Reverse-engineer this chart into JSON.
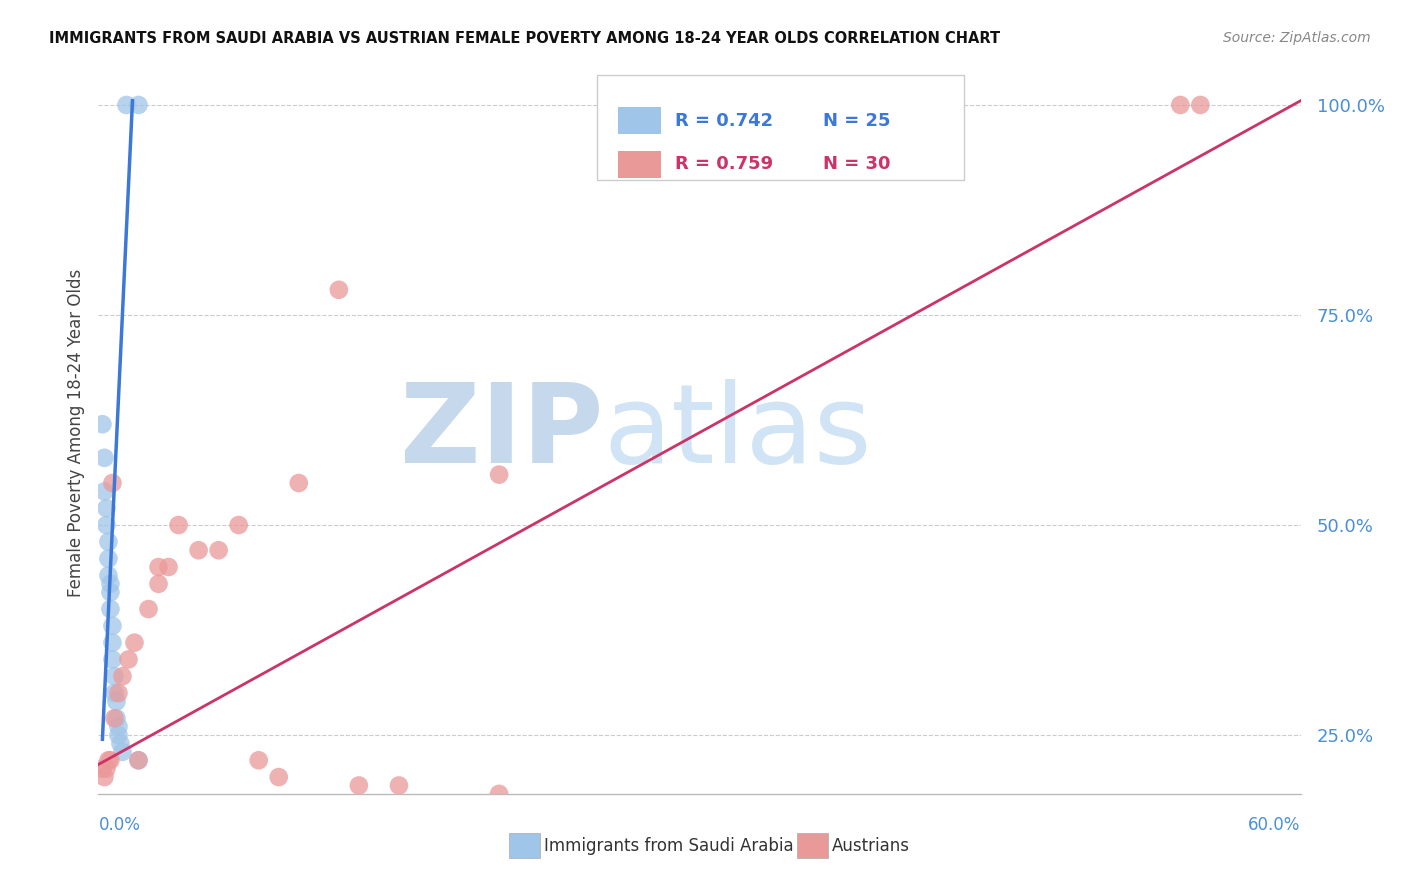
{
  "title": "IMMIGRANTS FROM SAUDI ARABIA VS AUSTRIAN FEMALE POVERTY AMONG 18-24 YEAR OLDS CORRELATION CHART",
  "source": "Source: ZipAtlas.com",
  "ylabel": "Female Poverty Among 18-24 Year Olds",
  "xmin": 0.0,
  "xmax": 0.6,
  "ymin": 0.18,
  "ymax": 1.04,
  "blue_color": "#9fc5e8",
  "pink_color": "#ea9999",
  "blue_line_color": "#3c78d8",
  "pink_line_color": "#cc3366",
  "blue_x": [
    0.002,
    0.003,
    0.003,
    0.004,
    0.004,
    0.005,
    0.005,
    0.005,
    0.006,
    0.006,
    0.006,
    0.007,
    0.007,
    0.007,
    0.008,
    0.008,
    0.009,
    0.009,
    0.01,
    0.01,
    0.011,
    0.012,
    0.014,
    0.02,
    0.02
  ],
  "blue_y": [
    0.62,
    0.58,
    0.54,
    0.52,
    0.5,
    0.48,
    0.46,
    0.44,
    0.43,
    0.42,
    0.4,
    0.38,
    0.36,
    0.34,
    0.32,
    0.3,
    0.29,
    0.27,
    0.26,
    0.25,
    0.24,
    0.23,
    1.0,
    1.0,
    0.22
  ],
  "pink_x": [
    0.002,
    0.003,
    0.004,
    0.005,
    0.006,
    0.007,
    0.008,
    0.01,
    0.012,
    0.015,
    0.018,
    0.02,
    0.025,
    0.03,
    0.03,
    0.035,
    0.04,
    0.05,
    0.06,
    0.07,
    0.08,
    0.09,
    0.1,
    0.12,
    0.13,
    0.15,
    0.2,
    0.2,
    0.54,
    0.55
  ],
  "pink_y": [
    0.21,
    0.2,
    0.21,
    0.22,
    0.22,
    0.55,
    0.27,
    0.3,
    0.32,
    0.34,
    0.36,
    0.22,
    0.4,
    0.43,
    0.45,
    0.45,
    0.5,
    0.47,
    0.47,
    0.5,
    0.22,
    0.2,
    0.55,
    0.78,
    0.19,
    0.19,
    0.18,
    0.56,
    1.0,
    1.0
  ],
  "blue_line_x0": 0.002,
  "blue_line_x1": 0.017,
  "blue_line_y0": 0.245,
  "blue_line_y1": 1.005,
  "pink_line_x0": 0.0,
  "pink_line_x1": 0.6,
  "pink_line_y0": 0.215,
  "pink_line_y1": 1.005
}
